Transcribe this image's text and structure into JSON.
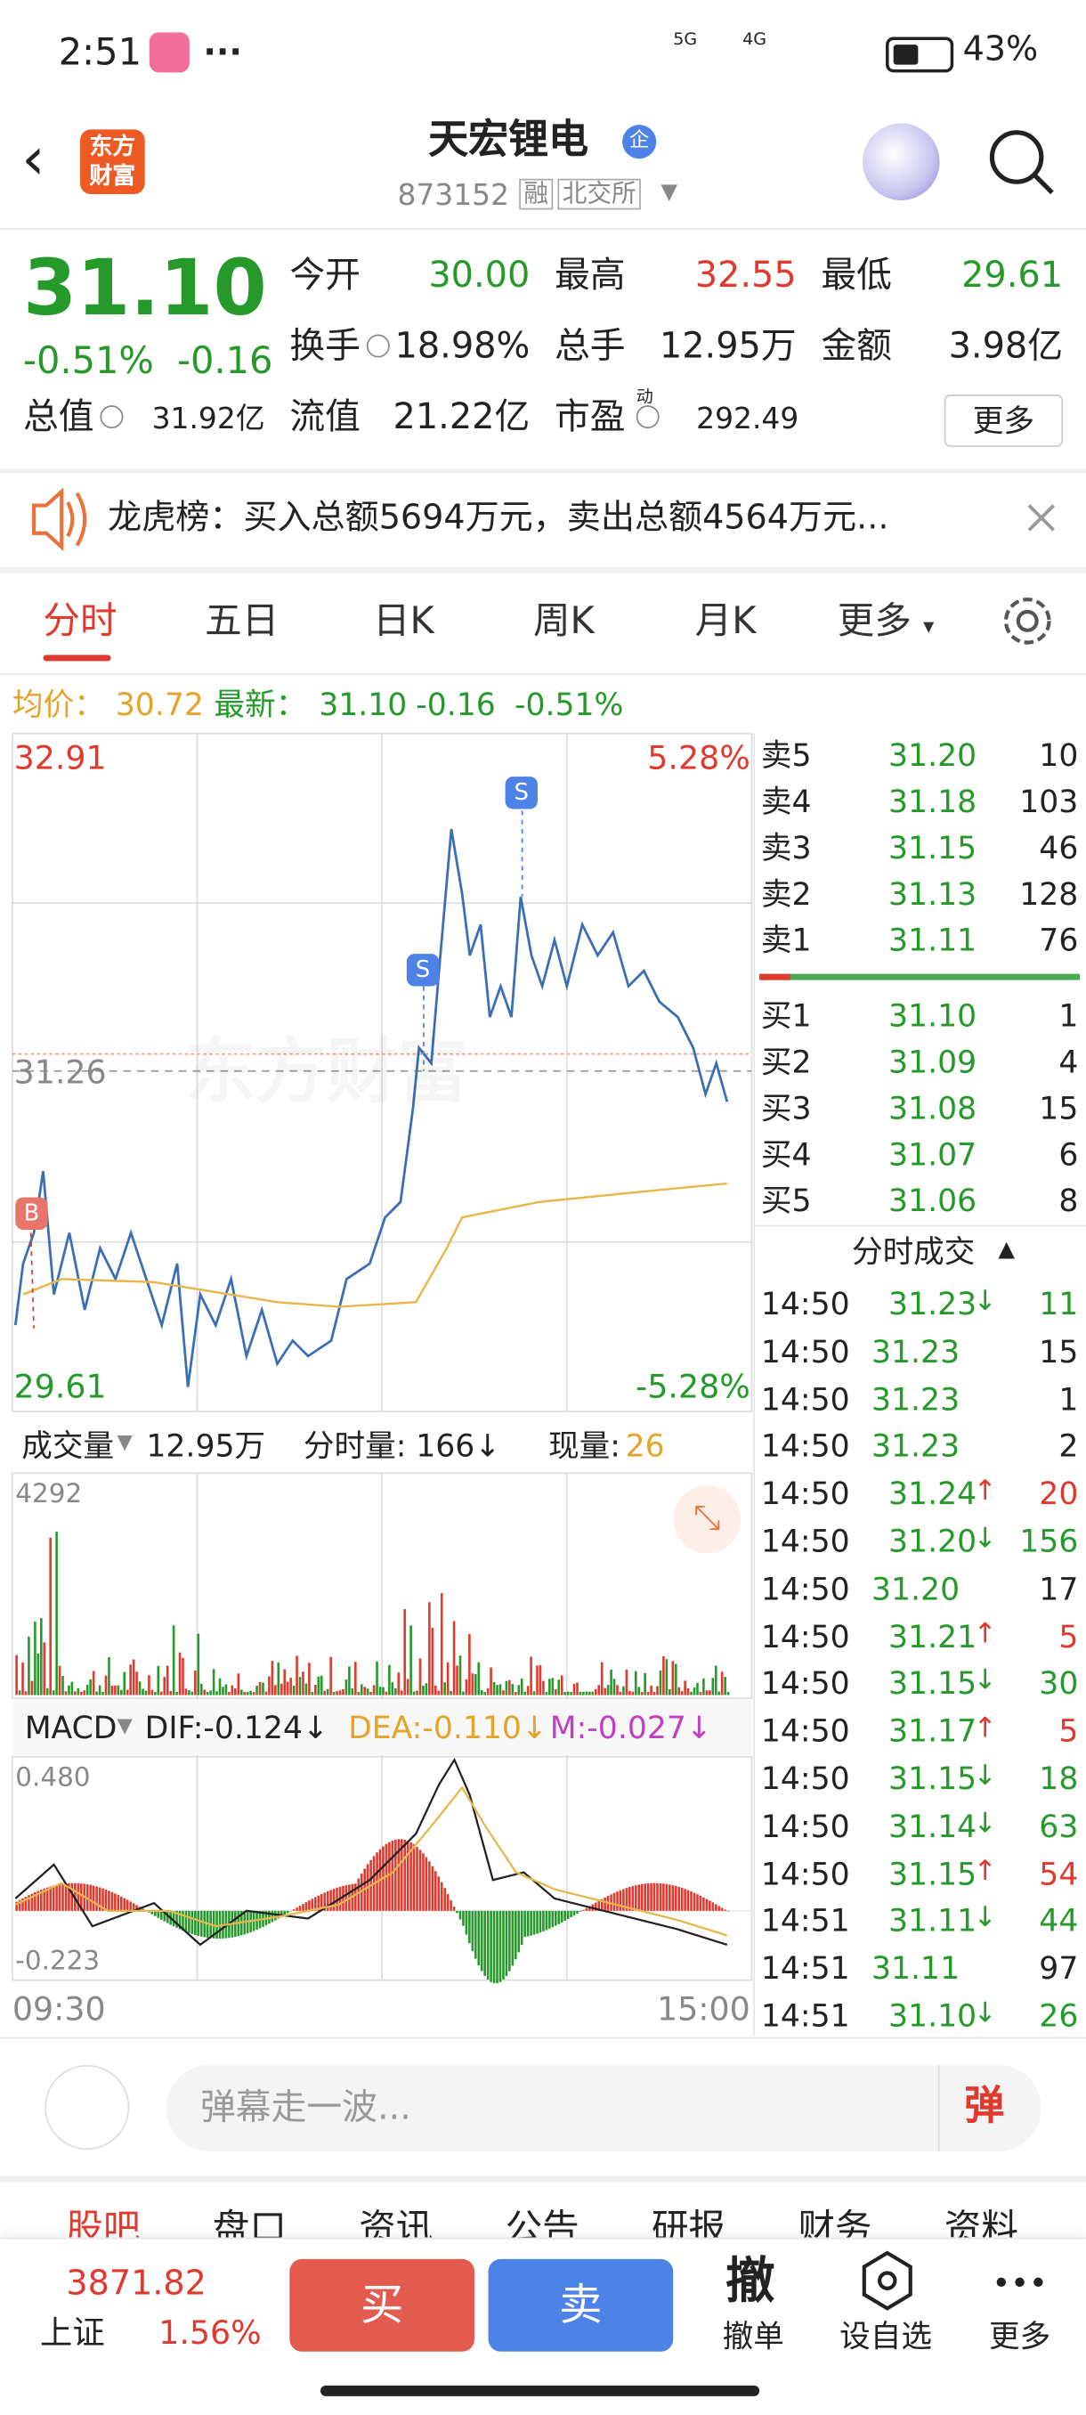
{
  "status_bar": {
    "time": "2:51",
    "network": [
      "5G",
      "4G"
    ],
    "battery": "43%"
  },
  "header": {
    "logo": "东方财富",
    "title": "天宏锂电",
    "badge": "企",
    "code": "873152",
    "tags": [
      "融",
      "北交所"
    ]
  },
  "quote": {
    "price": "31.10",
    "change_percent": "-0.51%",
    "change": "-0.16",
    "fields": [
      {
        "label": "今开",
        "value": "30.00"
      },
      {
        "label": "最高",
        "value": "32.55"
      },
      {
        "label": "最低",
        "value": "29.61"
      },
      {
        "label": "换手",
        "value": "18.98%"
      },
      {
        "label": "总手",
        "value": "12.95万"
      },
      {
        "label": "金额",
        "value": "3.98亿"
      },
      {
        "label": "总值",
        "value": "31.92亿"
      },
      {
        "label": "流值",
        "value": "21.22亿"
      },
      {
        "label": "市盈",
        "sup": "动",
        "value": "292.49"
      }
    ],
    "more": "更多"
  },
  "notice": {
    "text": "龙虎榜：买入总额5694万元，卖出总额4564万元..."
  },
  "chart_tabs": [
    "分时",
    "五日",
    "日K",
    "周K",
    "月K",
    "更多"
  ],
  "summary": {
    "avg_label": "均价：",
    "avg": "30.72",
    "latest_label": "最新：",
    "latest": "31.10",
    "change": "-0.16",
    "change_percent": "-0.51%"
  },
  "price_chart": {
    "high": "32.91",
    "high_percent": "5.28%",
    "prev_close": "31.26",
    "low": "29.61",
    "low_percent": "-5.28%",
    "watermark": "东方财富",
    "markers": [
      "S",
      "S",
      "B"
    ]
  },
  "volume": {
    "label": "成交量",
    "total": "12.95万",
    "period_label": "分时量:",
    "period": "166↓",
    "current_label": "现量:",
    "current": "26",
    "max": "4292"
  },
  "macd": {
    "label": "MACD",
    "dif": "DIF:-0.124↓",
    "dea": "DEA:-0.110↓",
    "m": "M:-0.027↓",
    "max": "0.480",
    "min": "-0.223"
  },
  "time_axis": [
    "09:30",
    "15:00"
  ],
  "order_book": {
    "asks": [
      {
        "label": "卖5",
        "price": "31.20",
        "volume": "10"
      },
      {
        "label": "卖4",
        "price": "31.18",
        "volume": "103"
      },
      {
        "label": "卖3",
        "price": "31.15",
        "volume": "46"
      },
      {
        "label": "卖2",
        "price": "31.13",
        "volume": "128"
      },
      {
        "label": "卖1",
        "price": "31.11",
        "volume": "76"
      }
    ],
    "bids": [
      {
        "label": "买1",
        "price": "31.10",
        "volume": "1"
      },
      {
        "label": "买2",
        "price": "31.09",
        "volume": "4"
      },
      {
        "label": "买3",
        "price": "31.08",
        "volume": "15"
      },
      {
        "label": "买4",
        "price": "31.07",
        "volume": "6"
      },
      {
        "label": "买5",
        "price": "31.06",
        "volume": "8"
      }
    ]
  },
  "trades": {
    "title": "分时成交",
    "rows": [
      {
        "time": "14:50",
        "price": "31.23",
        "dir": "↓",
        "volume": "11"
      },
      {
        "time": "14:50",
        "price": "31.23",
        "volume": "15"
      },
      {
        "time": "14:50",
        "price": "31.23",
        "volume": "1"
      },
      {
        "time": "14:50",
        "price": "31.23",
        "volume": "2"
      },
      {
        "time": "14:50",
        "price": "31.24",
        "dir": "↑",
        "volume": "20"
      },
      {
        "time": "14:50",
        "price": "31.20",
        "dir": "↓",
        "volume": "156"
      },
      {
        "time": "14:50",
        "price": "31.20",
        "volume": "17"
      },
      {
        "time": "14:50",
        "price": "31.21",
        "dir": "↑",
        "volume": "5"
      },
      {
        "time": "14:50",
        "price": "31.15",
        "dir": "↓",
        "volume": "30"
      },
      {
        "time": "14:50",
        "price": "31.17",
        "dir": "↑",
        "volume": "5"
      },
      {
        "time": "14:50",
        "price": "31.15",
        "dir": "↓",
        "volume": "18"
      },
      {
        "time": "14:50",
        "price": "31.14",
        "dir": "↓",
        "volume": "63"
      },
      {
        "time": "14:50",
        "price": "31.15",
        "dir": "↑",
        "volume": "54"
      },
      {
        "time": "14:51",
        "price": "31.11",
        "dir": "↓",
        "volume": "44"
      },
      {
        "time": "14:51",
        "price": "31.11",
        "volume": "97"
      },
      {
        "time": "14:51",
        "price": "31.10",
        "dir": "↓",
        "volume": "26"
      }
    ]
  },
  "comment": {
    "placeholder": "弹幕走一波...",
    "button": "弹"
  },
  "bottom_tabs": [
    "股吧",
    "盘口",
    "资讯",
    "公告",
    "研报",
    "财务",
    "资料"
  ],
  "footer": {
    "index_value": "3871.82",
    "index_name": "上证",
    "index_change": "1.56%",
    "buy": "买",
    "sell": "卖",
    "cancel_icon": "撤",
    "cancel": "撤单",
    "watchlist": "设自选",
    "more": "更多"
  }
}
